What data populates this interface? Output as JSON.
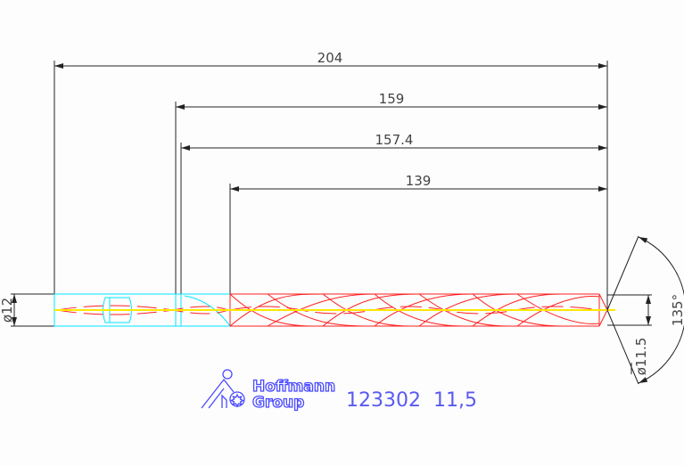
{
  "dimensions": {
    "overall_length": "204",
    "length_159": "159",
    "length_157_4": "157.4",
    "flute_length": "139",
    "shank_diameter": "ø12",
    "drill_diameter": "ø11.5",
    "point_angle": "135°"
  },
  "logo": {
    "line1": "Hoffmann",
    "line2": "Group"
  },
  "part_label": "123302  11,5",
  "colors": {
    "shank": "#00e5ff",
    "flute": "#ff2020",
    "centerline": "#ffe800",
    "dimension": "#222222",
    "logo": "#4a4aff"
  }
}
